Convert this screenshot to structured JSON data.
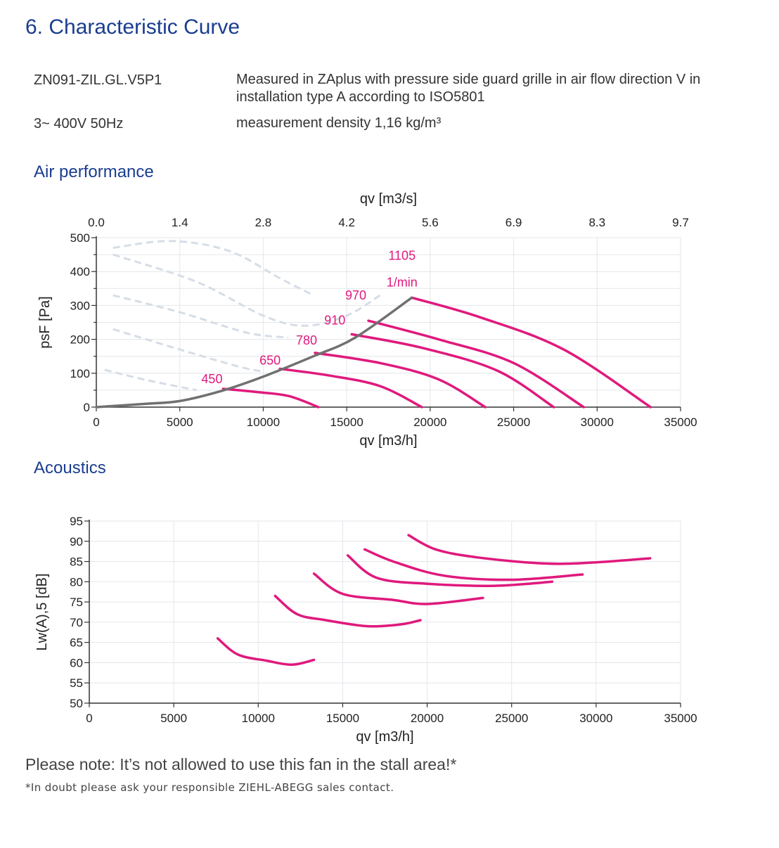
{
  "header": {
    "title": "6.  Characteristic Curve",
    "model": "ZN091-ZIL.GL.V5P1",
    "supply": "3~ 400V 50Hz",
    "measurement_line1": "Measured in ZAplus with pressure side guard grille in air flow direction V in",
    "measurement_line2": "installation type A according to ISO5801",
    "density": "measurement density 1,16 kg/m³"
  },
  "sections": {
    "air": "Air performance",
    "acoustics": "Acoustics"
  },
  "colors": {
    "curve": "#e0197d",
    "label": "#e0197d",
    "system_line": "#707070",
    "ghost": "#d6dde6",
    "grid": "#e3e6ea",
    "axis": "#333333",
    "heading": "#1a3d8f"
  },
  "chart_data": [
    {
      "type": "line",
      "name": "air-performance",
      "xlabel": "qv [m3/h]",
      "x2label": "qv [m3/s]",
      "ylabel": "psF [Pa]",
      "xlim": [
        0,
        35000
      ],
      "ylim": [
        0,
        500
      ],
      "xticks": [
        "0",
        "5000",
        "10000",
        "15000",
        "20000",
        "25000",
        "30000",
        "35000"
      ],
      "x2ticks": [
        "0.0",
        "1.4",
        "2.8",
        "4.2",
        "5.6",
        "6.9",
        "8.3",
        "9.7"
      ],
      "yticks": [
        "0",
        "100",
        "200",
        "300",
        "400",
        "500"
      ],
      "grid": true,
      "speed_unit": "1/min",
      "series": [
        {
          "name": "450",
          "points": [
            [
              7600,
              54
            ],
            [
              9500,
              45
            ],
            [
              11500,
              33
            ],
            [
              13300,
              0
            ]
          ]
        },
        {
          "name": "650",
          "points": [
            [
              11000,
              113
            ],
            [
              14000,
              93
            ],
            [
              17000,
              62
            ],
            [
              19500,
              0
            ]
          ]
        },
        {
          "name": "780",
          "points": [
            [
              13100,
              160
            ],
            [
              17000,
              130
            ],
            [
              20500,
              82
            ],
            [
              23300,
              0
            ]
          ]
        },
        {
          "name": "910",
          "points": [
            [
              15300,
              215
            ],
            [
              19500,
              175
            ],
            [
              24000,
              108
            ],
            [
              27400,
              0
            ]
          ]
        },
        {
          "name": "970",
          "points": [
            [
              16300,
              255
            ],
            [
              20500,
              200
            ],
            [
              25000,
              130
            ],
            [
              29200,
              0
            ]
          ]
        },
        {
          "name": "1105",
          "points": [
            [
              18900,
              323
            ],
            [
              23000,
              265
            ],
            [
              28000,
              170
            ],
            [
              33200,
              0
            ]
          ]
        }
      ],
      "system_line": [
        [
          0,
          0
        ],
        [
          3000,
          10
        ],
        [
          5000,
          18
        ],
        [
          7500,
          48
        ],
        [
          10000,
          90
        ],
        [
          13000,
          150
        ],
        [
          15500,
          205
        ],
        [
          18900,
          323
        ]
      ],
      "ghost_curves": [
        [
          [
            1000,
            470
          ],
          [
            4500,
            490
          ],
          [
            8000,
            460
          ],
          [
            11000,
            380
          ],
          [
            13000,
            330
          ]
        ],
        [
          [
            1000,
            450
          ],
          [
            6000,
            370
          ],
          [
            10000,
            270
          ],
          [
            12500,
            240
          ],
          [
            15000,
            270
          ],
          [
            17000,
            330
          ]
        ],
        [
          [
            1000,
            330
          ],
          [
            5000,
            280
          ],
          [
            9000,
            220
          ],
          [
            11500,
            205
          ]
        ],
        [
          [
            1000,
            230
          ],
          [
            5000,
            170
          ],
          [
            8500,
            120
          ],
          [
            10000,
            105
          ]
        ],
        [
          [
            500,
            110
          ],
          [
            3000,
            80
          ],
          [
            6000,
            50
          ]
        ]
      ]
    },
    {
      "type": "line",
      "name": "acoustics",
      "xlabel": "qv [m3/h]",
      "ylabel": "Lw(A),5 [dB]",
      "xlim": [
        0,
        35000
      ],
      "ylim": [
        50,
        95
      ],
      "xticks": [
        "0",
        "5000",
        "10000",
        "15000",
        "20000",
        "25000",
        "30000",
        "35000"
      ],
      "yticks": [
        "50",
        "55",
        "60",
        "65",
        "70",
        "75",
        "80",
        "85",
        "90",
        "95"
      ],
      "grid": true,
      "series": [
        {
          "points": [
            [
              7600,
              66
            ],
            [
              8800,
              62
            ],
            [
              10500,
              60.5
            ],
            [
              12000,
              59.5
            ],
            [
              13300,
              60.7
            ]
          ]
        },
        {
          "points": [
            [
              11000,
              76.5
            ],
            [
              12300,
              72
            ],
            [
              14000,
              70.5
            ],
            [
              16500,
              69
            ],
            [
              18500,
              69.5
            ],
            [
              19600,
              70.5
            ]
          ]
        },
        {
          "points": [
            [
              13300,
              82
            ],
            [
              15000,
              77
            ],
            [
              18000,
              75.5
            ],
            [
              20000,
              74.5
            ],
            [
              23300,
              76
            ]
          ]
        },
        {
          "points": [
            [
              15300,
              86.5
            ],
            [
              17000,
              81
            ],
            [
              20000,
              79.5
            ],
            [
              24000,
              79
            ],
            [
              27400,
              80
            ]
          ]
        },
        {
          "points": [
            [
              16300,
              88
            ],
            [
              18000,
              85
            ],
            [
              21000,
              81.5
            ],
            [
              25000,
              80.5
            ],
            [
              29200,
              81.8
            ]
          ]
        },
        {
          "points": [
            [
              18900,
              91.5
            ],
            [
              20500,
              88
            ],
            [
              23000,
              86
            ],
            [
              27000,
              84.5
            ],
            [
              30000,
              84.8
            ],
            [
              33200,
              85.8
            ]
          ]
        }
      ]
    }
  ],
  "footer": {
    "note": "Please note: It’s not allowed to use this fan in the stall area!*",
    "footnote": "*In doubt please ask your responsible ZIEHL-ABEGG sales contact."
  }
}
